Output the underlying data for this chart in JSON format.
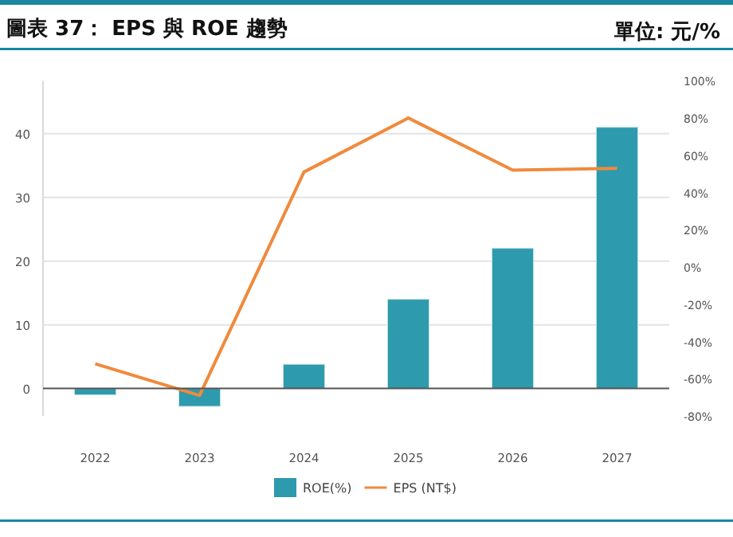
{
  "chart_data": {
    "type": "bar",
    "title": "圖表 37： EPS 與 ROE 趨勢",
    "subtitle": "單位: 元/%",
    "categories": [
      "2022",
      "2023",
      "2024",
      "2025",
      "2026",
      "2027"
    ],
    "series": [
      {
        "name": "ROE(%)",
        "color": "#2e9aad",
        "values": [
          -1,
          -2.8,
          3.8,
          14,
          22,
          41
        ]
      },
      {
        "name": "EPS (NT$)",
        "type": "line",
        "axis": "y2",
        "color": "#f08a3c",
        "values": [
          -52,
          -69,
          51,
          80,
          52,
          53
        ]
      }
    ],
    "ylim": [
      -4.3,
      48.3
    ],
    "yticks": [
      0,
      10,
      20,
      30,
      40
    ],
    "y2lim": [
      -80,
      100
    ],
    "y2ticks": [
      {
        "value": -80,
        "label": "-80%"
      },
      {
        "value": -60,
        "label": "-60%"
      },
      {
        "value": -40,
        "label": "-40%"
      },
      {
        "value": -20,
        "label": "-20%"
      },
      {
        "value": 0,
        "label": "0%"
      },
      {
        "value": 20,
        "label": "20%"
      },
      {
        "value": 40,
        "label": "40%"
      },
      {
        "value": 60,
        "label": "60%"
      },
      {
        "value": 80,
        "label": "80%"
      },
      {
        "value": 100,
        "label": "100%"
      }
    ],
    "grid": "y",
    "legend": "bottom",
    "marker": "none"
  }
}
